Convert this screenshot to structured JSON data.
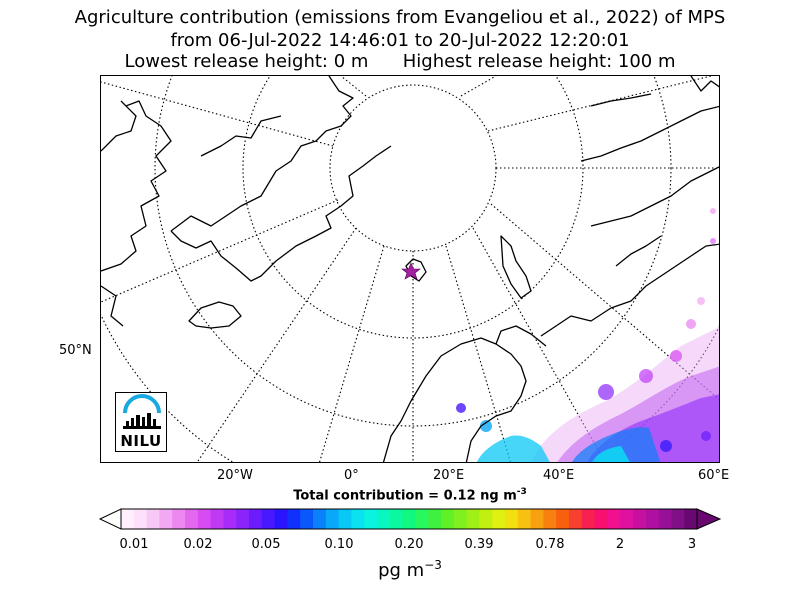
{
  "title": {
    "line1": "Agriculture contribution (emissions from Evangeliou et al., 2022) of MPS",
    "line2": "from 06-Jul-2022 14:46:01 to 20-Jul-2022 12:20:01",
    "line3": "Lowest release height: 0 m      Highest release height: 100 m"
  },
  "map": {
    "lon_labels": [
      "20°W",
      "0°",
      "20°E",
      "40°E",
      "60°E"
    ],
    "lat_labels": [
      "50°N"
    ],
    "release_marker": "star-icon",
    "colors": {
      "coastline": "#000000",
      "graticule": "#000000",
      "marker": "#a020a0"
    }
  },
  "logo": {
    "text": "NILU",
    "arc_color": "#1aa8e0"
  },
  "total": {
    "label": "Total contribution = 0.12 ng m",
    "exponent": "-3"
  },
  "colorbar": {
    "tick_labels": [
      "0.01",
      "0.02",
      "0.05",
      "0.10",
      "0.20",
      "0.39",
      "0.78",
      "2",
      "3"
    ],
    "unit": "pg m",
    "unit_exponent": "−3",
    "colors": [
      "#ffeefc",
      "#fde0fa",
      "#f8c8f6",
      "#f2a8f2",
      "#ec88ef",
      "#e468ef",
      "#d64cf2",
      "#c03af5",
      "#a82cf8",
      "#8a24fa",
      "#6a1cfc",
      "#4a18fd",
      "#2a14fe",
      "#1030fe",
      "#0a58fc",
      "#0a80fa",
      "#0aa8f8",
      "#0ac8f6",
      "#0ae2f2",
      "#0af2e0",
      "#0af6c0",
      "#0af8a0",
      "#10f880",
      "#28f860",
      "#40f040",
      "#60f028",
      "#80f020",
      "#a0f018",
      "#c0f010",
      "#e0f010",
      "#f0e010",
      "#f8c010",
      "#f8a010",
      "#f88010",
      "#f86010",
      "#f84030",
      "#f82050",
      "#f81070",
      "#f01090",
      "#e010a0",
      "#c810a0",
      "#b010a0",
      "#981098",
      "#801088",
      "#680870"
    ]
  }
}
